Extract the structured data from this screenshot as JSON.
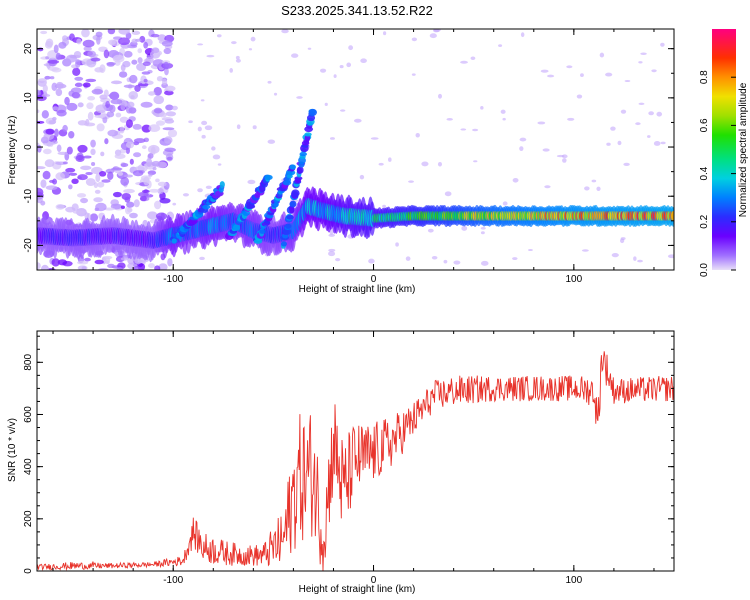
{
  "figure": {
    "title": "S233.2025.341.13.52.R22"
  },
  "chart_data": [
    {
      "type": "heatmap",
      "title": "S233.2025.341.13.52.R22",
      "xlabel": "Height of straight line (km)",
      "ylabel": "Frequency (Hz)",
      "xlim": [
        -168,
        150
      ],
      "ylim": [
        -25,
        24
      ],
      "xticks": [
        -100,
        0,
        100
      ],
      "yticks": [
        -20,
        -10,
        0,
        10,
        20
      ],
      "colorbar": {
        "label": "Normalized spectral amplitude",
        "range": [
          0.0,
          1.0
        ],
        "ticks": [
          0.0,
          0.2,
          0.4,
          0.6,
          0.8
        ]
      },
      "main_band": {
        "description_points_x": [
          -168,
          -150,
          -130,
          -110,
          -100,
          -90,
          -80,
          -70,
          -60,
          -50,
          -40,
          -33,
          -25,
          -15,
          0,
          20,
          60,
          100,
          150
        ],
        "frequency_hz": [
          -18,
          -18.5,
          -18,
          -19,
          -18,
          -17,
          -16,
          -15,
          -17,
          -18,
          -17,
          -12,
          -13,
          -14,
          -14.5,
          -14,
          -14,
          -14,
          -14
        ],
        "peak_amplitude": [
          0.2,
          0.22,
          0.2,
          0.2,
          0.35,
          0.3,
          0.35,
          0.3,
          0.3,
          0.25,
          0.3,
          0.4,
          0.4,
          0.45,
          0.5,
          0.6,
          0.8,
          0.9,
          0.95
        ]
      },
      "ridges": [
        {
          "x": [
            -100,
            -75
          ],
          "y": [
            -19,
            -8
          ]
        },
        {
          "x": [
            -72,
            -52
          ],
          "y": [
            -18,
            -6
          ]
        },
        {
          "x": [
            -58,
            -40
          ],
          "y": [
            -19,
            -4
          ]
        },
        {
          "x": [
            -45,
            -30
          ],
          "y": [
            -20,
            8
          ]
        }
      ],
      "noise_region": {
        "x": [
          -168,
          -100
        ],
        "y": [
          -25,
          24
        ]
      }
    },
    {
      "type": "line",
      "xlabel": "Height of straight line (km)",
      "ylabel": "SNR (10 * v/v)",
      "xlim": [
        -168,
        150
      ],
      "ylim": [
        0,
        920
      ],
      "xticks": [
        -100,
        0,
        100
      ],
      "yticks": [
        0,
        200,
        400,
        600,
        800
      ],
      "series": [
        {
          "name": "SNR",
          "color": "#e8332b",
          "x": [
            -168,
            -150,
            -130,
            -110,
            -95,
            -90,
            -85,
            -75,
            -65,
            -55,
            -45,
            -38,
            -30,
            -25,
            -20,
            -15,
            -10,
            0,
            10,
            20,
            30,
            40,
            60,
            80,
            100,
            110,
            112,
            114,
            120,
            150
          ],
          "y": [
            15,
            20,
            20,
            25,
            40,
            150,
            90,
            70,
            60,
            60,
            120,
            350,
            380,
            120,
            500,
            300,
            420,
            450,
            500,
            580,
            670,
            690,
            700,
            700,
            700,
            690,
            560,
            830,
            690,
            700
          ],
          "spread": [
            10,
            15,
            10,
            10,
            20,
            60,
            60,
            50,
            40,
            45,
            120,
            250,
            250,
            150,
            200,
            200,
            150,
            120,
            100,
            70,
            60,
            60,
            50,
            50,
            50,
            60,
            80,
            80,
            50,
            50
          ]
        }
      ]
    }
  ]
}
